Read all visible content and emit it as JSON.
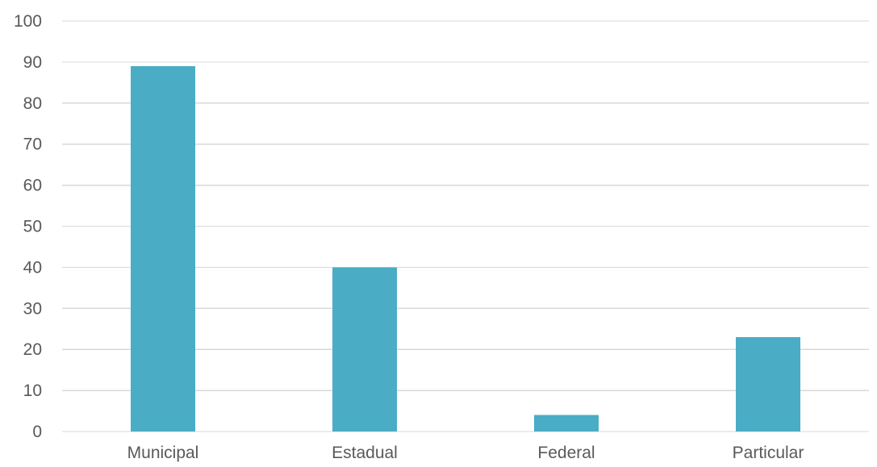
{
  "chart_data": {
    "type": "bar",
    "categories": [
      "Municipal",
      "Estadual",
      "Federal",
      "Particular"
    ],
    "values": [
      89,
      40,
      4,
      23
    ],
    "title": "",
    "xlabel": "",
    "ylabel": "",
    "ylim": [
      0,
      100
    ],
    "yticks": [
      "0",
      "10",
      "20",
      "30",
      "40",
      "50",
      "60",
      "70",
      "80",
      "90",
      "100"
    ],
    "grid": true,
    "legend": "none",
    "colors": {
      "bar": "#4BACC6",
      "grid": "#D9D9D9",
      "text": "#595959"
    }
  }
}
